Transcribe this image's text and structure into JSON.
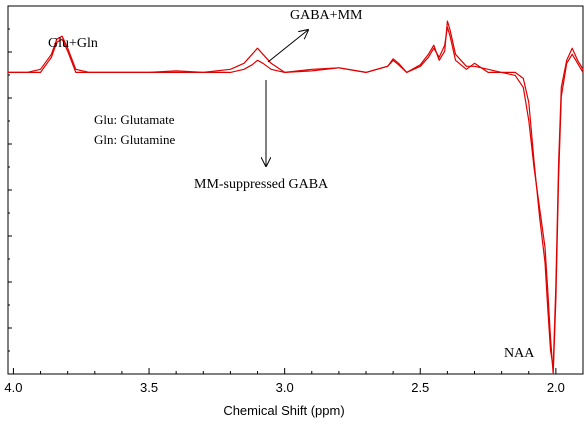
{
  "chart_data": {
    "type": "line",
    "title": "",
    "xlabel": "Chemical Shift (ppm)",
    "ylabel": "",
    "x_reversed": true,
    "xlim": [
      4.02,
      1.9
    ],
    "ylim": [
      -1.0,
      0.22
    ],
    "x_ticks": [
      {
        "value": 4.0,
        "label": "4.0"
      },
      {
        "value": 3.5,
        "label": "3.5"
      },
      {
        "value": 3.0,
        "label": "3.0"
      },
      {
        "value": 2.5,
        "label": "2.5"
      },
      {
        "value": 2.0,
        "label": "2.0"
      }
    ],
    "grid": false,
    "line_color": "#e00000",
    "series": [
      {
        "x": [
          4.02,
          3.95,
          3.9,
          3.86,
          3.84,
          3.82,
          3.8,
          3.77,
          3.72,
          3.6,
          3.5,
          3.4,
          3.3,
          3.2,
          3.15,
          3.12,
          3.1,
          3.08,
          3.05,
          3.0,
          2.9,
          2.8,
          2.7,
          2.62,
          2.6,
          2.58,
          2.55,
          2.5,
          2.47,
          2.45,
          2.43,
          2.41,
          2.4,
          2.39,
          2.37,
          2.33,
          2.3,
          2.25,
          2.2,
          2.15,
          2.12,
          2.1,
          2.08,
          2.06,
          2.04,
          2.03,
          2.02,
          2.01,
          2.0,
          1.99,
          1.98,
          1.96,
          1.94,
          1.92,
          1.9
        ],
        "y": [
          0.0,
          0.0,
          0.01,
          0.06,
          0.11,
          0.12,
          0.08,
          0.01,
          0.0,
          0.0,
          0.0,
          0.005,
          0.0,
          0.0,
          0.01,
          0.025,
          0.04,
          0.03,
          0.01,
          0.0,
          0.01,
          0.015,
          0.0,
          0.02,
          0.045,
          0.03,
          0.0,
          0.025,
          0.06,
          0.09,
          0.04,
          0.07,
          0.17,
          0.14,
          0.06,
          0.02,
          0.02,
          0.01,
          0.0,
          0.0,
          -0.02,
          -0.1,
          -0.3,
          -0.48,
          -0.63,
          -0.78,
          -0.92,
          -0.98,
          -0.7,
          -0.3,
          -0.05,
          0.04,
          0.08,
          0.04,
          0.01
        ]
      },
      {
        "x": [
          4.02,
          3.95,
          3.9,
          3.86,
          3.84,
          3.82,
          3.8,
          3.77,
          3.72,
          3.6,
          3.5,
          3.4,
          3.3,
          3.2,
          3.15,
          3.12,
          3.1,
          3.08,
          3.05,
          3.0,
          2.9,
          2.8,
          2.7,
          2.62,
          2.6,
          2.58,
          2.55,
          2.5,
          2.47,
          2.45,
          2.43,
          2.41,
          2.4,
          2.39,
          2.37,
          2.33,
          2.3,
          2.25,
          2.2,
          2.15,
          2.12,
          2.1,
          2.08,
          2.06,
          2.04,
          2.03,
          2.02,
          2.01,
          2.0,
          1.99,
          1.98,
          1.96,
          1.94,
          1.92,
          1.9
        ],
        "y": [
          0.0,
          0.0,
          0.0,
          0.05,
          0.1,
          0.11,
          0.07,
          0.0,
          0.0,
          0.0,
          0.0,
          0.0,
          0.0,
          0.01,
          0.03,
          0.06,
          0.08,
          0.06,
          0.03,
          0.0,
          0.005,
          0.015,
          0.0,
          0.02,
          0.04,
          0.025,
          0.0,
          0.02,
          0.05,
          0.08,
          0.05,
          0.09,
          0.15,
          0.12,
          0.04,
          0.01,
          0.03,
          0.0,
          0.0,
          -0.01,
          -0.05,
          -0.16,
          -0.32,
          -0.45,
          -0.58,
          -0.72,
          -0.88,
          -1.0,
          -0.75,
          -0.35,
          -0.08,
          0.03,
          0.06,
          0.03,
          0.0
        ]
      }
    ],
    "annotations": {
      "glu_gln": "Glu+Gln",
      "gaba_mm": "GABA+MM",
      "glu_def": "Glu: Glutamate",
      "gln_def": "Gln: Glutamine",
      "mm_suppressed": "MM-suppressed GABA",
      "naa": "NAA"
    }
  }
}
